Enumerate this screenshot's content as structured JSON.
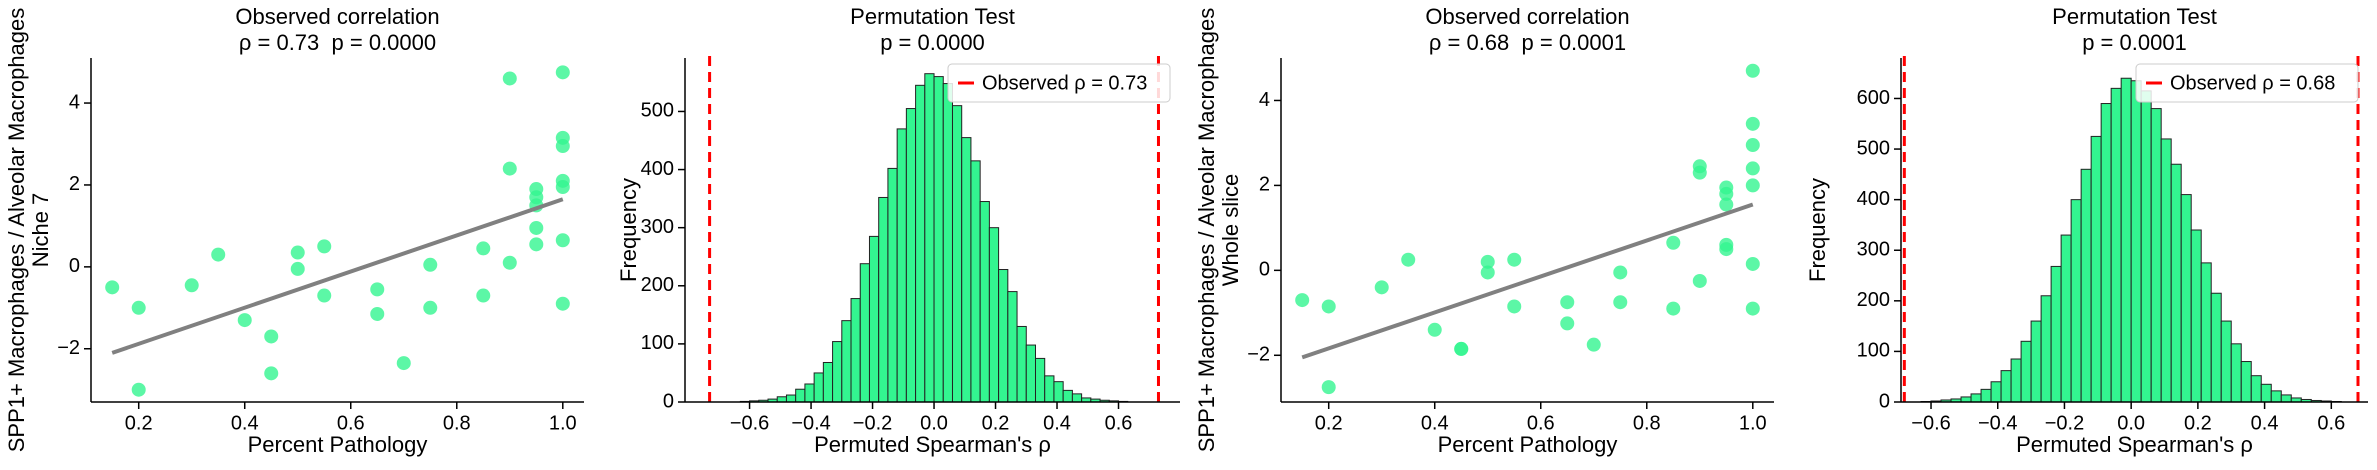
{
  "chart_data": [
    {
      "type": "scatter",
      "title": "Observed correlation",
      "subtitle": "ρ = 0.73  p = 0.0000",
      "xlabel": "Percent Pathology",
      "ylabel": [
        "SPP1+ Macrophages / Alveolar Macrophages",
        "Niche 7"
      ],
      "xlim": [
        0.11,
        1.04
      ],
      "ylim": [
        -3.3,
        5.1
      ],
      "xticks": [
        0.2,
        0.4,
        0.6,
        0.8,
        {
          "value": 1,
          "label": "1.0"
        }
      ],
      "yticks": [
        {
          "value": -2,
          "label": "−2"
        },
        0,
        2,
        4
      ],
      "series": [
        {
          "color": "#33f590",
          "x": [
            0.15,
            0.2,
            0.2,
            0.3,
            0.35,
            0.4,
            0.45,
            0.45,
            0.5,
            0.5,
            0.55,
            0.55,
            0.65,
            0.65,
            0.7,
            0.75,
            0.75,
            0.85,
            0.85,
            0.9,
            0.9,
            0.9,
            0.95,
            0.95,
            0.95,
            0.95,
            0.95,
            1.0,
            1.0,
            1.0,
            1.0,
            1.0,
            1.0,
            1.0
          ],
          "values": [
            -0.5,
            -1.0,
            -3.0,
            -0.45,
            0.3,
            -1.3,
            -1.7,
            -2.6,
            0.35,
            -0.05,
            0.5,
            -0.7,
            -0.55,
            -1.15,
            -2.35,
            0.05,
            -1.0,
            0.45,
            -0.7,
            4.6,
            2.4,
            0.1,
            1.9,
            1.7,
            1.5,
            0.95,
            0.55,
            4.75,
            3.15,
            2.95,
            2.1,
            1.95,
            0.65,
            -0.9
          ]
        }
      ],
      "trendline": {
        "color": "#808080",
        "x": [
          0.15,
          1.0
        ],
        "values": [
          -2.1,
          1.65
        ]
      }
    },
    {
      "type": "histogram",
      "title": "Permutation Test",
      "subtitle": "p = 0.0000",
      "xlabel": "Permuted Spearman's ρ",
      "ylabel": "Frequency",
      "xlim": [
        -0.81,
        0.8
      ],
      "ylim": [
        0,
        592
      ],
      "xticks": [
        {
          "value": -0.6,
          "label": "−0.6"
        },
        {
          "value": -0.4,
          "label": "−0.4"
        },
        {
          "value": -0.2,
          "label": "−0.2"
        },
        {
          "value": 0,
          "label": "0.0"
        },
        0.2,
        0.4,
        0.6
      ],
      "yticks": [
        0,
        100,
        200,
        300,
        400,
        500
      ],
      "color": "#33f590",
      "edgecolor": "#222222",
      "bins": [
        -0.63,
        -0.6,
        -0.57,
        -0.54,
        -0.51,
        -0.48,
        -0.45,
        -0.42,
        -0.39,
        -0.36,
        -0.33,
        -0.3,
        -0.27,
        -0.24,
        -0.21,
        -0.18,
        -0.15,
        -0.12,
        -0.09,
        -0.06,
        -0.03,
        0,
        0.03,
        0.06,
        0.09,
        0.12,
        0.15,
        0.18,
        0.21,
        0.24,
        0.27,
        0.3,
        0.33,
        0.36,
        0.39,
        0.42,
        0.45,
        0.48,
        0.51,
        0.54,
        0.57,
        0.6,
        0.63
      ],
      "counts": [
        1,
        2,
        3,
        5,
        9,
        12,
        22,
        31,
        50,
        68,
        104,
        140,
        178,
        238,
        285,
        352,
        402,
        470,
        505,
        545,
        565,
        560,
        548,
        510,
        455,
        415,
        345,
        300,
        228,
        190,
        130,
        98,
        75,
        45,
        35,
        20,
        14,
        7,
        5,
        3,
        2,
        1
      ],
      "vlines": {
        "name": "Observed ρ = 0.73",
        "color": "#ff0000",
        "values": [
          -0.73,
          0.73
        ]
      },
      "legend": "upper right"
    },
    {
      "type": "scatter",
      "title": "Observed correlation",
      "subtitle": "ρ = 0.68  p = 0.0001",
      "xlabel": "Percent Pathology",
      "ylabel": [
        "SPP1+ Macrophages / Alveolar Macrophages",
        "Whole slice"
      ],
      "xlim": [
        0.11,
        1.04
      ],
      "ylim": [
        -3.1,
        5.0
      ],
      "xticks": [
        0.2,
        0.4,
        0.6,
        0.8,
        {
          "value": 1,
          "label": "1.0"
        }
      ],
      "yticks": [
        {
          "value": -2,
          "label": "−2"
        },
        0,
        2,
        4
      ],
      "series": [
        {
          "color": "#33f590",
          "x": [
            0.15,
            0.2,
            0.2,
            0.3,
            0.35,
            0.4,
            0.45,
            0.45,
            0.5,
            0.5,
            0.55,
            0.55,
            0.65,
            0.65,
            0.7,
            0.75,
            0.75,
            0.85,
            0.85,
            0.9,
            0.9,
            0.9,
            0.95,
            0.95,
            0.95,
            0.95,
            0.95,
            1.0,
            1.0,
            1.0,
            1.0,
            1.0,
            1.0,
            1.0
          ],
          "values": [
            -0.7,
            -0.85,
            -2.75,
            -0.4,
            0.25,
            -1.4,
            -1.85,
            -1.85,
            0.2,
            -0.05,
            0.25,
            -0.85,
            -0.75,
            -1.25,
            -1.75,
            -0.05,
            -0.75,
            0.65,
            -0.9,
            2.45,
            2.3,
            -0.25,
            1.95,
            1.8,
            1.55,
            0.6,
            0.5,
            4.7,
            3.45,
            2.95,
            2.4,
            2.0,
            0.15,
            -0.9
          ]
        }
      ],
      "trendline": {
        "color": "#808080",
        "x": [
          0.15,
          1.0
        ],
        "values": [
          -2.05,
          1.55
        ]
      }
    },
    {
      "type": "histogram",
      "title": "Permutation Test",
      "subtitle": "p = 0.0001",
      "xlabel": "Permuted Spearman's ρ",
      "ylabel": "Frequency",
      "xlim": [
        -0.69,
        0.71
      ],
      "ylim": [
        0,
        680
      ],
      "xticks": [
        {
          "value": -0.6,
          "label": "−0.6"
        },
        {
          "value": -0.4,
          "label": "−0.4"
        },
        {
          "value": -0.2,
          "label": "−0.2"
        },
        {
          "value": 0,
          "label": "0.0"
        },
        0.2,
        0.4,
        0.6
      ],
      "yticks": [
        0,
        100,
        200,
        300,
        400,
        500,
        600
      ],
      "color": "#33f590",
      "edgecolor": "#222222",
      "bins": [
        -0.63,
        -0.6,
        -0.57,
        -0.54,
        -0.51,
        -0.48,
        -0.45,
        -0.42,
        -0.39,
        -0.36,
        -0.33,
        -0.3,
        -0.27,
        -0.24,
        -0.21,
        -0.18,
        -0.15,
        -0.12,
        -0.09,
        -0.06,
        -0.03,
        0,
        0.03,
        0.06,
        0.09,
        0.12,
        0.15,
        0.18,
        0.21,
        0.24,
        0.27,
        0.3,
        0.33,
        0.36,
        0.39,
        0.42,
        0.45,
        0.48,
        0.51,
        0.54,
        0.57,
        0.6,
        0.63
      ],
      "counts": [
        1,
        2,
        4,
        6,
        10,
        16,
        25,
        40,
        62,
        85,
        120,
        160,
        210,
        268,
        330,
        400,
        460,
        525,
        590,
        620,
        640,
        635,
        615,
        580,
        520,
        470,
        410,
        340,
        275,
        215,
        160,
        115,
        80,
        52,
        35,
        22,
        14,
        8,
        5,
        3,
        2,
        1
      ],
      "vlines": {
        "name": "Observed ρ = 0.68",
        "color": "#ff0000",
        "values": [
          -0.68,
          0.68
        ]
      },
      "legend": "upper right"
    }
  ]
}
